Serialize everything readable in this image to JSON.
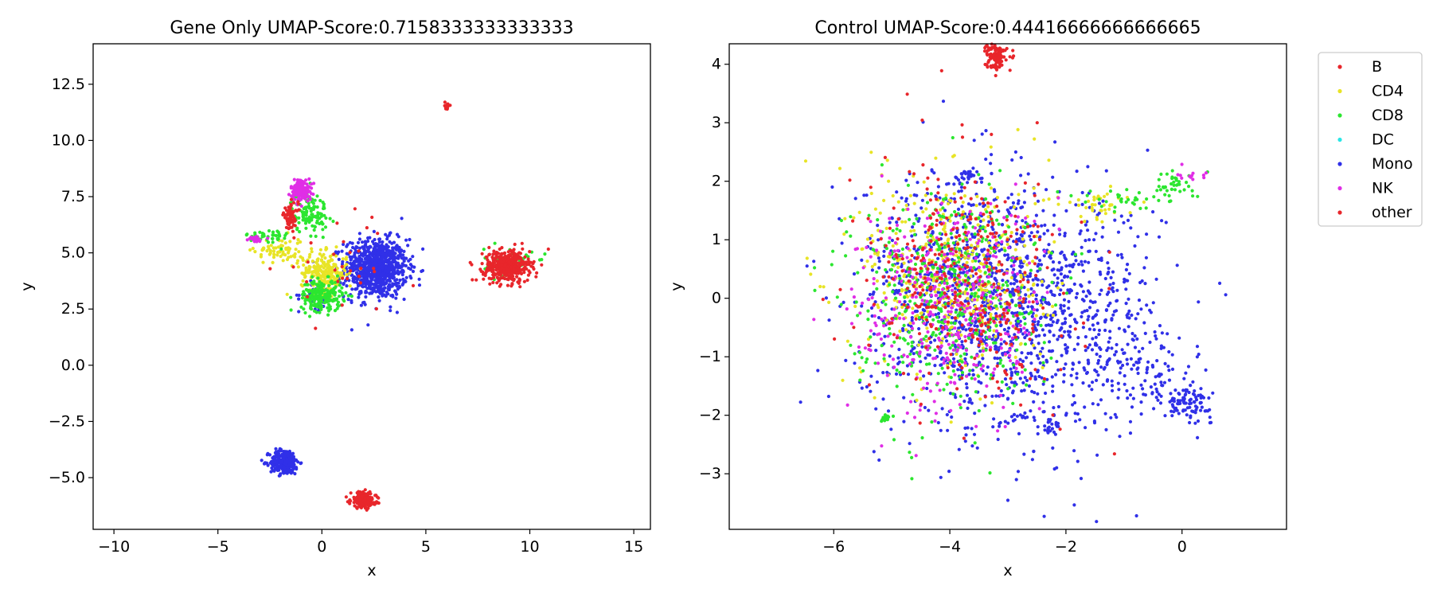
{
  "chart_data": [
    {
      "type": "scatter",
      "title": "Gene Only UMAP-Score:0.7158333333333333",
      "xlabel": "x",
      "ylabel": "y",
      "xlim": [
        -11.0,
        15.8
      ],
      "ylim": [
        -7.3,
        14.3
      ],
      "xticks": [
        -10,
        -5,
        0,
        5,
        10,
        15
      ],
      "xtick_labels": [
        "−10",
        "−5",
        "0",
        "5",
        "10",
        "15"
      ],
      "yticks": [
        -5.0,
        -2.5,
        0.0,
        2.5,
        5.0,
        7.5,
        10.0,
        12.5
      ],
      "ytick_labels": [
        "−5.0",
        "−2.5",
        "0.0",
        "2.5",
        "5.0",
        "7.5",
        "10.0",
        "12.5"
      ],
      "grid": false,
      "clusters": [
        {
          "series": "Mono",
          "center": [
            2.6,
            4.3
          ],
          "spread": [
            0.75,
            0.65
          ],
          "count": 900
        },
        {
          "series": "Mono",
          "center": [
            -1.8,
            -4.3
          ],
          "spread": [
            0.35,
            0.28
          ],
          "count": 260
        },
        {
          "series": "Mono",
          "center": [
            -0.3,
            3.1
          ],
          "spread": [
            0.4,
            0.3
          ],
          "count": 40
        },
        {
          "series": "CD4",
          "center": [
            0.1,
            4.1
          ],
          "spread": [
            0.55,
            0.45
          ],
          "count": 230
        },
        {
          "series": "CD4",
          "center": [
            -2.0,
            5.1
          ],
          "spread": [
            0.6,
            0.3
          ],
          "count": 70
        },
        {
          "series": "CD8",
          "center": [
            0.0,
            3.1
          ],
          "spread": [
            0.5,
            0.35
          ],
          "count": 220
        },
        {
          "series": "CD8",
          "center": [
            -0.6,
            6.8
          ],
          "spread": [
            0.45,
            0.45
          ],
          "count": 120
        },
        {
          "series": "CD8",
          "center": [
            -2.6,
            5.7
          ],
          "spread": [
            0.5,
            0.2
          ],
          "count": 45
        },
        {
          "series": "CD8",
          "center": [
            9.0,
            4.6
          ],
          "spread": [
            0.6,
            0.3
          ],
          "count": 50
        },
        {
          "series": "NK",
          "center": [
            -1.0,
            7.8
          ],
          "spread": [
            0.25,
            0.25
          ],
          "count": 150
        },
        {
          "series": "NK",
          "center": [
            -3.3,
            5.6
          ],
          "spread": [
            0.25,
            0.08
          ],
          "count": 25
        },
        {
          "series": "other",
          "center": [
            8.9,
            4.4
          ],
          "spread": [
            0.55,
            0.35
          ],
          "count": 420
        },
        {
          "series": "other",
          "center": [
            2.0,
            -6.0
          ],
          "spread": [
            0.3,
            0.18
          ],
          "count": 200
        },
        {
          "series": "other",
          "center": [
            -1.5,
            6.6
          ],
          "spread": [
            0.18,
            0.3
          ],
          "count": 70
        },
        {
          "series": "other",
          "center": [
            6.0,
            11.55
          ],
          "spread": [
            0.07,
            0.07
          ],
          "count": 14
        },
        {
          "series": "B",
          "center": [
            1.0,
            4.3
          ],
          "spread": [
            1.6,
            1.0
          ],
          "count": 30
        }
      ]
    },
    {
      "type": "scatter",
      "title": "Control UMAP-Score:0.44416666666666665",
      "xlabel": "x",
      "ylabel": "y",
      "xlim": [
        -7.8,
        1.8
      ],
      "ylim": [
        -3.95,
        4.35
      ],
      "xticks": [
        -6,
        -4,
        -2,
        0
      ],
      "xtick_labels": [
        "−6",
        "−4",
        "−2",
        "0"
      ],
      "yticks": [
        -3,
        -2,
        -1,
        0,
        1,
        2,
        3,
        4
      ],
      "ytick_labels": [
        "−3",
        "−2",
        "−1",
        "0",
        "1",
        "2",
        "3",
        "4"
      ],
      "grid": false,
      "clusters": [
        {
          "series": "Mono",
          "center": [
            -2.6,
            -0.3
          ],
          "spread": [
            1.1,
            1.0
          ],
          "count": 1100
        },
        {
          "series": "Mono",
          "center": [
            -4.0,
            0.3
          ],
          "spread": [
            0.8,
            1.0
          ],
          "count": 450
        },
        {
          "series": "Mono",
          "center": [
            0.1,
            -1.8
          ],
          "spread": [
            0.2,
            0.12
          ],
          "count": 90
        },
        {
          "series": "Mono",
          "center": [
            -0.7,
            -1.3
          ],
          "spread": [
            0.45,
            0.3
          ],
          "count": 80
        },
        {
          "series": "Mono",
          "center": [
            -3.7,
            2.1
          ],
          "spread": [
            0.12,
            0.07
          ],
          "count": 30
        },
        {
          "series": "Mono",
          "center": [
            -2.3,
            -2.2
          ],
          "spread": [
            0.12,
            0.1
          ],
          "count": 25
        },
        {
          "series": "CD4",
          "center": [
            -3.9,
            0.4
          ],
          "spread": [
            0.8,
            0.9
          ],
          "count": 450
        },
        {
          "series": "CD4",
          "center": [
            -1.4,
            1.6
          ],
          "spread": [
            0.3,
            0.15
          ],
          "count": 40
        },
        {
          "series": "CD8",
          "center": [
            -4.1,
            0.1
          ],
          "spread": [
            0.8,
            0.9
          ],
          "count": 450
        },
        {
          "series": "CD8",
          "center": [
            -0.9,
            1.7
          ],
          "spread": [
            0.5,
            0.1
          ],
          "count": 35
        },
        {
          "series": "CD8",
          "center": [
            -0.1,
            1.95
          ],
          "spread": [
            0.25,
            0.12
          ],
          "count": 35
        },
        {
          "series": "CD8",
          "center": [
            -5.1,
            -2.05
          ],
          "spread": [
            0.06,
            0.04
          ],
          "count": 14
        },
        {
          "series": "NK",
          "center": [
            -4.0,
            -0.2
          ],
          "spread": [
            0.8,
            0.9
          ],
          "count": 380
        },
        {
          "series": "NK",
          "center": [
            0.2,
            2.15
          ],
          "spread": [
            0.2,
            0.08
          ],
          "count": 12
        },
        {
          "series": "other",
          "center": [
            -3.8,
            0.3
          ],
          "spread": [
            0.8,
            0.95
          ],
          "count": 280
        },
        {
          "series": "other",
          "center": [
            -3.2,
            4.15
          ],
          "spread": [
            0.09,
            0.12
          ],
          "count": 110
        },
        {
          "series": "B",
          "center": [
            -3.6,
            0.2
          ],
          "spread": [
            0.9,
            1.0
          ],
          "count": 80
        }
      ]
    }
  ],
  "legend": {
    "placement": "outside-right",
    "entries": [
      {
        "label": "B",
        "color": "#e8262b"
      },
      {
        "label": "CD4",
        "color": "#e8e426"
      },
      {
        "label": "CD8",
        "color": "#2ce630"
      },
      {
        "label": "DC",
        "color": "#29e6e6"
      },
      {
        "label": "Mono",
        "color": "#3030e8"
      },
      {
        "label": "NK",
        "color": "#e02ee6"
      },
      {
        "label": "other",
        "color": "#e8262b"
      }
    ]
  }
}
